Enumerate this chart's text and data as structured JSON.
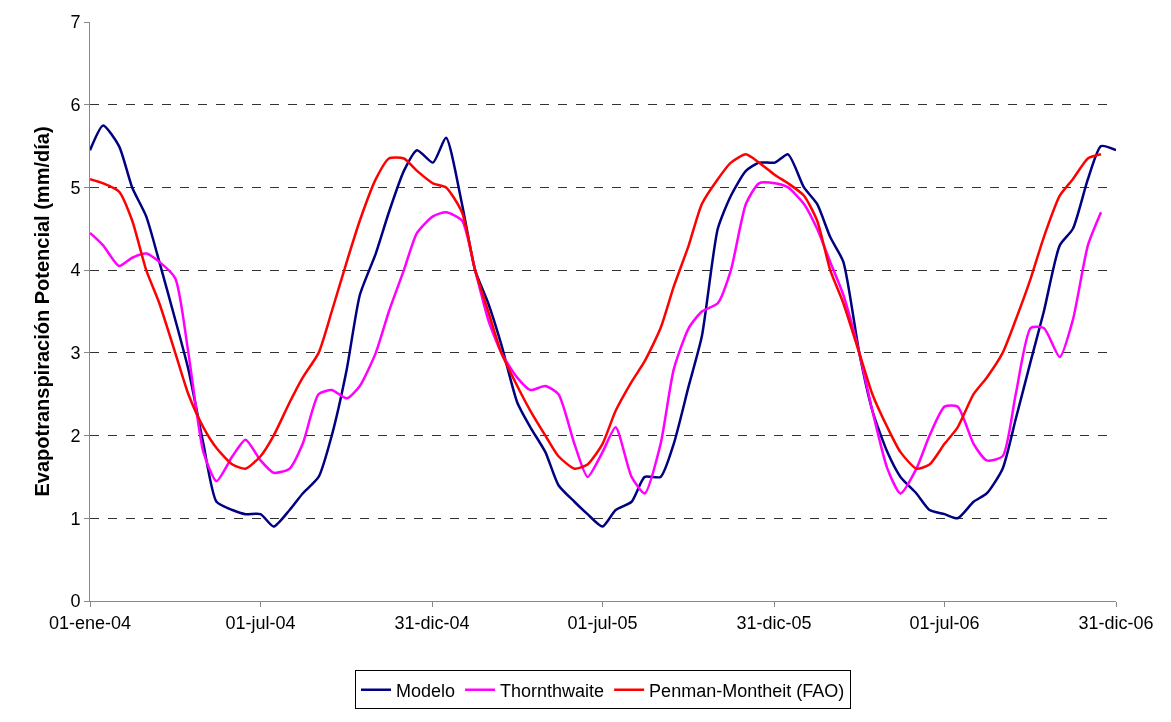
{
  "chart_data": {
    "type": "line",
    "ylabel": "Evapotranspiración Potencial (mm/día)",
    "x": [
      "2004-01-01",
      "2004-01-15",
      "2004-02-01",
      "2004-02-15",
      "2004-03-01",
      "2004-03-15",
      "2004-04-01",
      "2004-04-15",
      "2004-05-01",
      "2004-05-15",
      "2004-06-01",
      "2004-06-15",
      "2004-07-01",
      "2004-07-15",
      "2004-08-01",
      "2004-08-15",
      "2004-09-01",
      "2004-09-15",
      "2004-10-01",
      "2004-10-15",
      "2004-11-01",
      "2004-11-15",
      "2004-12-01",
      "2004-12-15",
      "2005-01-01",
      "2005-01-15",
      "2005-02-01",
      "2005-02-15",
      "2005-03-01",
      "2005-03-15",
      "2005-04-01",
      "2005-04-15",
      "2005-05-01",
      "2005-05-15",
      "2005-06-01",
      "2005-06-15",
      "2005-07-01",
      "2005-07-15",
      "2005-08-01",
      "2005-08-15",
      "2005-09-01",
      "2005-09-15",
      "2005-10-01",
      "2005-10-15",
      "2005-11-01",
      "2005-11-15",
      "2005-12-01",
      "2005-12-15",
      "2006-01-01",
      "2006-01-15",
      "2006-02-01",
      "2006-02-15",
      "2006-03-01",
      "2006-03-15",
      "2006-04-01",
      "2006-04-15",
      "2006-05-01",
      "2006-05-15",
      "2006-06-01",
      "2006-06-15",
      "2006-07-01",
      "2006-07-15",
      "2006-08-01",
      "2006-08-15",
      "2006-09-01",
      "2006-09-15",
      "2006-10-01",
      "2006-10-15",
      "2006-11-01",
      "2006-11-15",
      "2006-12-01",
      "2006-12-15",
      "2006-12-31"
    ],
    "series": [
      {
        "name": "Modelo",
        "color": "#000080",
        "values": [
          5.45,
          5.75,
          5.5,
          5.0,
          4.65,
          4.1,
          3.4,
          2.8,
          1.9,
          1.2,
          1.1,
          1.05,
          1.05,
          0.9,
          1.1,
          1.3,
          1.5,
          2.0,
          2.8,
          3.7,
          4.2,
          4.7,
          5.2,
          5.45,
          5.3,
          5.6,
          4.8,
          4.0,
          3.6,
          3.1,
          2.4,
          2.1,
          1.8,
          1.4,
          1.2,
          1.05,
          0.9,
          1.1,
          1.2,
          1.5,
          1.5,
          1.9,
          2.6,
          3.2,
          4.5,
          4.9,
          5.2,
          5.3,
          5.3,
          5.4,
          5.0,
          4.8,
          4.4,
          4.1,
          3.0,
          2.3,
          1.8,
          1.5,
          1.3,
          1.1,
          1.05,
          1.0,
          1.2,
          1.3,
          1.6,
          2.2,
          2.9,
          3.5,
          4.3,
          4.5,
          5.1,
          5.5,
          5.45
        ]
      },
      {
        "name": "Thornthwaite",
        "color": "#ff00ff",
        "values": [
          4.45,
          4.3,
          4.05,
          4.15,
          4.2,
          4.1,
          3.9,
          3.0,
          1.8,
          1.45,
          1.75,
          1.95,
          1.7,
          1.55,
          1.6,
          1.9,
          2.5,
          2.55,
          2.45,
          2.6,
          3.0,
          3.5,
          4.0,
          4.45,
          4.65,
          4.7,
          4.6,
          4.0,
          3.4,
          3.0,
          2.7,
          2.55,
          2.6,
          2.5,
          1.9,
          1.5,
          1.8,
          2.1,
          1.5,
          1.3,
          1.9,
          2.8,
          3.3,
          3.5,
          3.6,
          4.0,
          4.8,
          5.05,
          5.05,
          5.0,
          4.8,
          4.5,
          4.1,
          3.7,
          3.0,
          2.3,
          1.6,
          1.3,
          1.6,
          2.0,
          2.35,
          2.35,
          1.9,
          1.7,
          1.75,
          2.5,
          3.3,
          3.3,
          2.95,
          3.4,
          4.3,
          4.7,
          null
        ]
      },
      {
        "name": "Penman-Montheit (FAO)",
        "color": "#ff0000",
        "values": [
          5.1,
          5.05,
          4.95,
          4.6,
          4.0,
          3.6,
          3.0,
          2.5,
          2.1,
          1.85,
          1.65,
          1.6,
          1.75,
          2.0,
          2.4,
          2.7,
          3.0,
          3.5,
          4.1,
          4.6,
          5.1,
          5.35,
          5.35,
          5.2,
          5.05,
          5.0,
          4.7,
          4.0,
          3.5,
          3.0,
          2.6,
          2.3,
          2.0,
          1.75,
          1.6,
          1.65,
          1.9,
          2.3,
          2.65,
          2.9,
          3.3,
          3.8,
          4.3,
          4.8,
          5.1,
          5.3,
          5.4,
          5.3,
          5.15,
          5.05,
          4.9,
          4.6,
          4.0,
          3.6,
          3.0,
          2.5,
          2.1,
          1.8,
          1.6,
          1.65,
          1.9,
          2.1,
          2.5,
          2.7,
          3.0,
          3.4,
          3.9,
          4.4,
          4.9,
          5.1,
          5.35,
          5.4,
          null
        ]
      }
    ],
    "xlim": [
      "2004-01-01",
      "2006-12-31"
    ],
    "xticks": [
      {
        "value": "2004-01-01",
        "label": "01-ene-04"
      },
      {
        "value": "2004-07-01",
        "label": "01-jul-04"
      },
      {
        "value": "2004-12-31",
        "label": "31-dic-04"
      },
      {
        "value": "2005-07-01",
        "label": "01-jul-05"
      },
      {
        "value": "2005-12-31",
        "label": "31-dic-05"
      },
      {
        "value": "2006-07-01",
        "label": "01-jul-06"
      },
      {
        "value": "2006-12-31",
        "label": "31-dic-06"
      }
    ],
    "ylim": [
      0,
      7
    ],
    "yticks": [
      0,
      1,
      2,
      3,
      4,
      5,
      6,
      7
    ],
    "grid": "y",
    "legend": "bottom",
    "marker": "none",
    "line_style": "solid"
  }
}
